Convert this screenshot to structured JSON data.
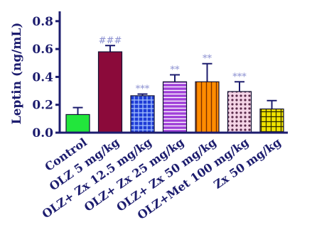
{
  "chart_data": {
    "type": "bar",
    "ylabel": "Leptin (ng/mL)",
    "ylim": [
      0,
      0.85
    ],
    "yticks": [
      "0.0",
      "0.2",
      "0.4",
      "0.6",
      "0.8"
    ],
    "ytick_values": [
      0.0,
      0.2,
      0.4,
      0.6,
      0.8
    ],
    "categories": [
      "Control",
      "OLZ 5 mg/kg",
      "OLZ+ Zx 12.5 mg/kg",
      "OLZ+ Zx 25 mg/kg",
      "OLZ+ Zx 50 mg/kg",
      "OLZ+Met 100 mg/kg",
      "Zx 50 mg/kg"
    ],
    "values": [
      0.13,
      0.58,
      0.265,
      0.365,
      0.365,
      0.295,
      0.17
    ],
    "errors": [
      0.05,
      0.045,
      0.012,
      0.05,
      0.13,
      0.07,
      0.06
    ],
    "annotations": [
      "",
      "###",
      "***",
      "**",
      "**",
      "***",
      ""
    ],
    "colors": [
      "#22e63c",
      "#8b0a3a",
      "#1e3cd6",
      "#a040d8",
      "#ff8c00",
      "#e8a0c8",
      "#f0e400"
    ],
    "patterns": [
      "solid",
      "solid",
      "grid",
      "horizontal-lines",
      "vertical-lines",
      "dots",
      "grid"
    ],
    "grid": false,
    "legend": "none"
  }
}
